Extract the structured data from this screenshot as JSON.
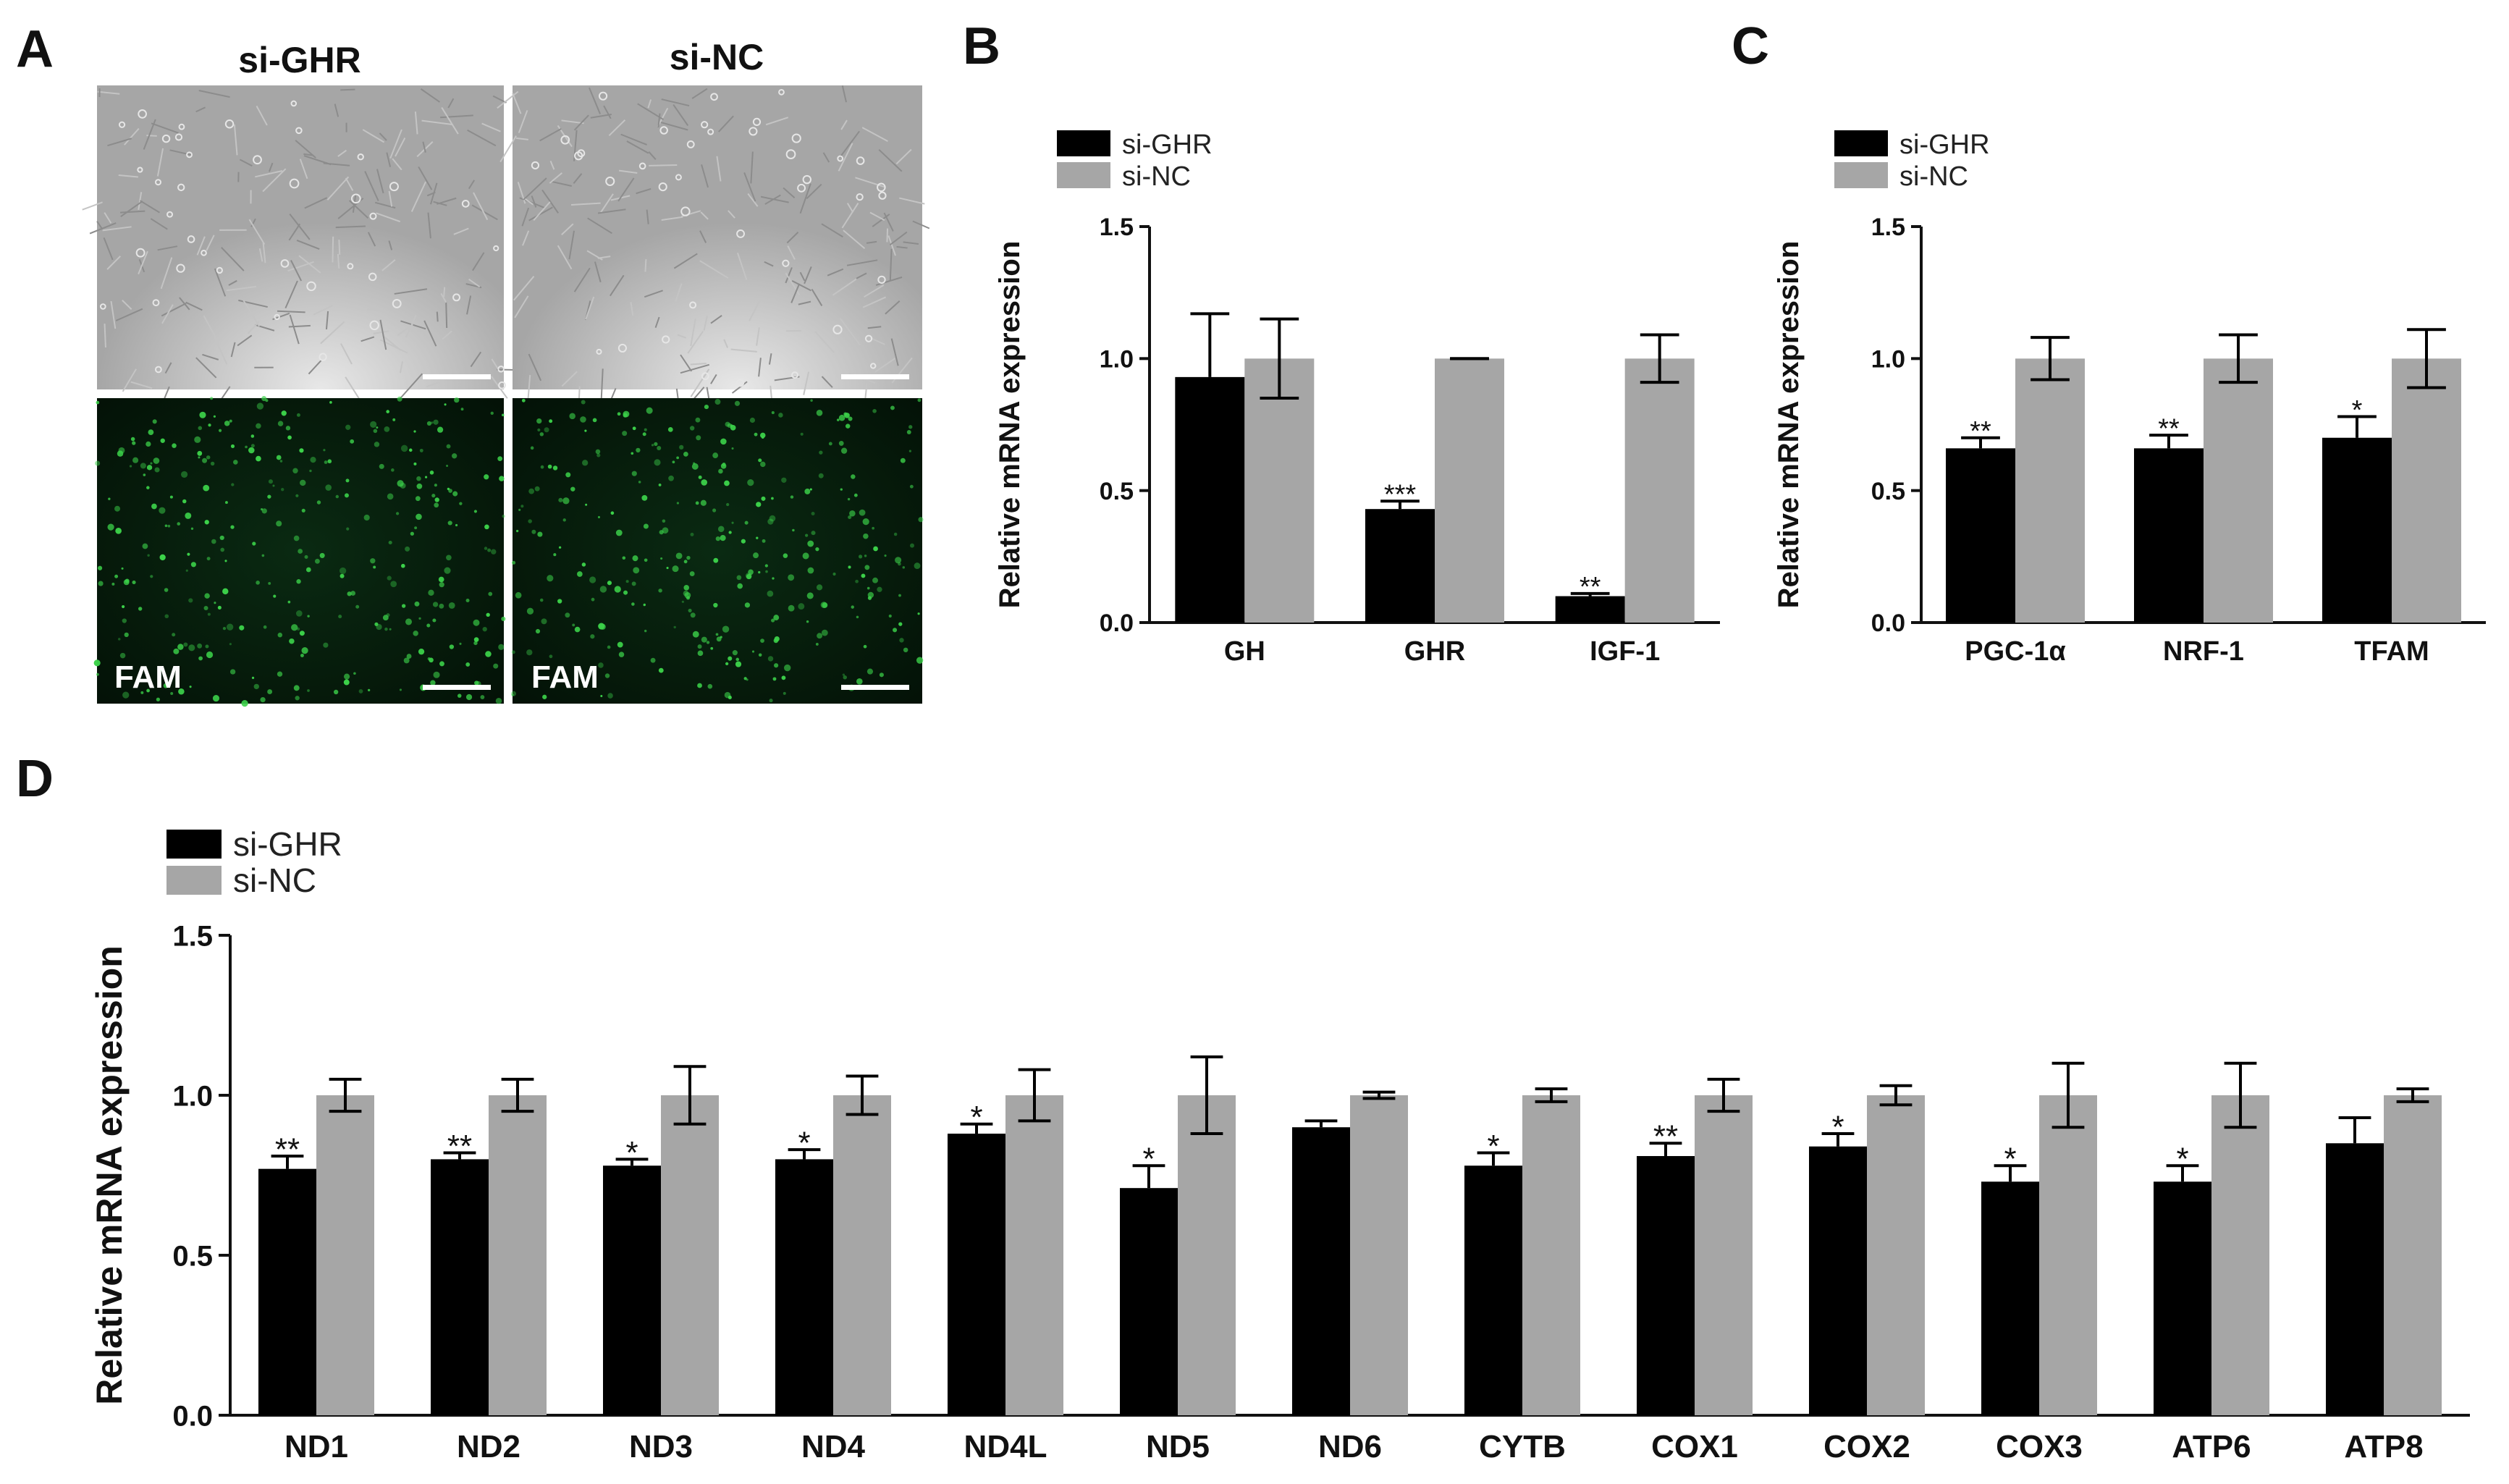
{
  "panels": {
    "a": {
      "letter": "A",
      "col1_title": "si-GHR",
      "col2_title": "si-NC",
      "fluor_label_1": "FAM",
      "fluor_label_2": "FAM"
    },
    "b": {
      "letter": "B"
    },
    "c": {
      "letter": "C"
    },
    "d": {
      "letter": "D"
    }
  },
  "colors": {
    "si_ghr": "#000000",
    "si_nc": "#a6a6a6",
    "axis": "#111111",
    "brightfield": "#a8a8a8",
    "fluor_bg": "#05160a",
    "fluor_cell": "#3cd24a"
  },
  "chart_data": [
    {
      "id": "B",
      "type": "bar",
      "title": "",
      "xlabel": "",
      "ylabel": "Relative mRNA expression",
      "ylim": [
        0,
        1.5
      ],
      "yticks": [
        "0.0",
        "0.5",
        "1.0",
        "1.5"
      ],
      "legend_position": "top-left",
      "categories": [
        "GH",
        "GHR",
        "IGF-1"
      ],
      "series": [
        {
          "name": "si-GHR",
          "values": [
            0.93,
            0.43,
            0.1
          ],
          "errors": [
            0.24,
            0.03,
            0.01
          ]
        },
        {
          "name": "si-NC",
          "values": [
            1.0,
            1.0,
            1.0
          ],
          "errors": [
            0.15,
            0.0,
            0.09
          ]
        }
      ],
      "significance": [
        "",
        "***",
        "**"
      ]
    },
    {
      "id": "C",
      "type": "bar",
      "title": "",
      "xlabel": "",
      "ylabel": "Relative mRNA expression",
      "ylim": [
        0,
        1.5
      ],
      "yticks": [
        "0.0",
        "0.5",
        "1.0",
        "1.5"
      ],
      "legend_position": "top-left",
      "categories": [
        "PGC-1α",
        "NRF-1",
        "TFAM"
      ],
      "series": [
        {
          "name": "si-GHR",
          "values": [
            0.66,
            0.66,
            0.7
          ],
          "errors": [
            0.04,
            0.05,
            0.08
          ]
        },
        {
          "name": "si-NC",
          "values": [
            1.0,
            1.0,
            1.0
          ],
          "errors": [
            0.08,
            0.09,
            0.11
          ]
        }
      ],
      "significance": [
        "**",
        "**",
        "*"
      ]
    },
    {
      "id": "D",
      "type": "bar",
      "title": "",
      "xlabel": "",
      "ylabel": "Relative mRNA expression",
      "ylim": [
        0,
        1.5
      ],
      "yticks": [
        "0.0",
        "0.5",
        "1.0",
        "1.5"
      ],
      "legend_position": "top-left",
      "categories": [
        "ND1",
        "ND2",
        "ND3",
        "ND4",
        "ND4L",
        "ND5",
        "ND6",
        "CYTB",
        "COX1",
        "COX2",
        "COX3",
        "ATP6",
        "ATP8"
      ],
      "series": [
        {
          "name": "si-GHR",
          "values": [
            0.77,
            0.8,
            0.78,
            0.8,
            0.88,
            0.71,
            0.9,
            0.78,
            0.81,
            0.84,
            0.73,
            0.73,
            0.85
          ],
          "errors": [
            0.04,
            0.02,
            0.02,
            0.03,
            0.03,
            0.07,
            0.02,
            0.04,
            0.04,
            0.04,
            0.05,
            0.05,
            0.08
          ]
        },
        {
          "name": "si-NC",
          "values": [
            1.0,
            1.0,
            1.0,
            1.0,
            1.0,
            1.0,
            1.0,
            1.0,
            1.0,
            1.0,
            1.0,
            1.0,
            1.0
          ],
          "errors": [
            0.05,
            0.05,
            0.09,
            0.06,
            0.08,
            0.12,
            0.01,
            0.02,
            0.05,
            0.03,
            0.1,
            0.1,
            0.02
          ]
        }
      ],
      "significance": [
        "**",
        "**",
        "*",
        "*",
        "*",
        "*",
        "",
        "*",
        "**",
        "*",
        "*",
        "*",
        ""
      ]
    }
  ]
}
